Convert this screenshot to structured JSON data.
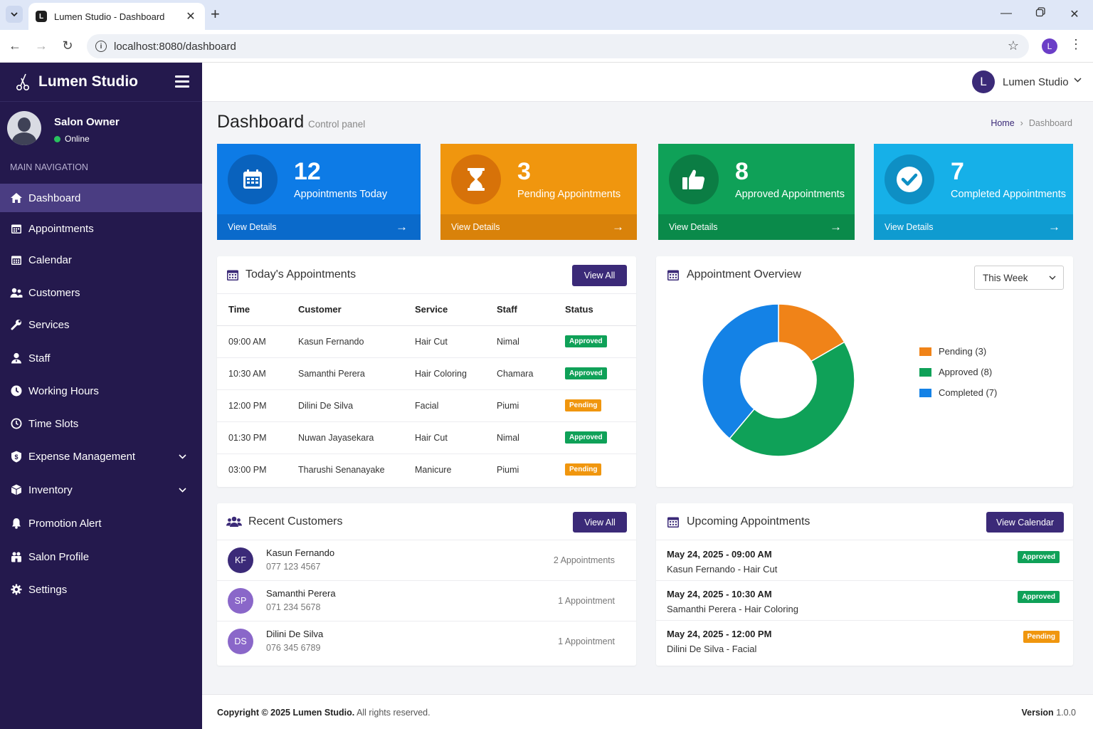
{
  "browser": {
    "tab_title": "Lumen Studio - Dashboard",
    "favicon_letter": "L",
    "url": "localhost:8080/dashboard",
    "profile_letter": "L"
  },
  "sidebar": {
    "brand": "Lumen Studio",
    "user_name": "Salon Owner",
    "user_status": "Online",
    "nav_header": "MAIN NAVIGATION",
    "items": [
      {
        "label": "Dashboard",
        "icon": "tachometer-icon"
      },
      {
        "label": "Appointments",
        "icon": "calendar-icon"
      },
      {
        "label": "Calendar",
        "icon": "calendar-grid-icon"
      },
      {
        "label": "Customers",
        "icon": "users-icon"
      },
      {
        "label": "Services",
        "icon": "wrench-icon"
      },
      {
        "label": "Staff",
        "icon": "user-tie-icon"
      },
      {
        "label": "Working Hours",
        "icon": "clock-icon"
      },
      {
        "label": "Time Slots",
        "icon": "clock-outline-icon"
      },
      {
        "label": "Expense Management",
        "icon": "money-icon"
      },
      {
        "label": "Inventory",
        "icon": "box-icon"
      },
      {
        "label": "Promotion Alert",
        "icon": "bell-icon"
      },
      {
        "label": "Salon Profile",
        "icon": "building-icon"
      },
      {
        "label": "Settings",
        "icon": "gear-icon"
      }
    ]
  },
  "topbar": {
    "avatar_letter": "L",
    "user": "Lumen Studio"
  },
  "page": {
    "title": "Dashboard",
    "subtitle": "Control panel",
    "breadcrumb_home": "Home",
    "breadcrumb_current": "Dashboard"
  },
  "stats": [
    {
      "value": "12",
      "label": "Appointments Today",
      "link": "View Details",
      "color": "#0d7be6",
      "foot": "#0a6acb",
      "circle": "#0962bd"
    },
    {
      "value": "3",
      "label": "Pending Appointments",
      "link": "View Details",
      "color": "#f0960e",
      "foot": "#d9820a",
      "circle": "#d77209"
    },
    {
      "value": "8",
      "label": "Approved Appointments",
      "link": "View Details",
      "color": "#0fa158",
      "foot": "#0a8a4a",
      "circle": "#0b7d44"
    },
    {
      "value": "7",
      "label": "Completed Appointments",
      "link": "View Details",
      "color": "#16b0e8",
      "foot": "#0f9bd0",
      "circle": "#0e8fc4"
    }
  ],
  "today": {
    "title": "Today's Appointments",
    "view_all": "View All",
    "columns": [
      "Time",
      "Customer",
      "Service",
      "Staff",
      "Status"
    ],
    "rows": [
      {
        "time": "09:00 AM",
        "customer": "Kasun Fernando",
        "service": "Hair Cut",
        "staff": "Nimal",
        "status": "Approved"
      },
      {
        "time": "10:30 AM",
        "customer": "Samanthi Perera",
        "service": "Hair Coloring",
        "staff": "Chamara",
        "status": "Approved"
      },
      {
        "time": "12:00 PM",
        "customer": "Dilini De Silva",
        "service": "Facial",
        "staff": "Piumi",
        "status": "Pending"
      },
      {
        "time": "01:30 PM",
        "customer": "Nuwan Jayasekara",
        "service": "Hair Cut",
        "staff": "Nimal",
        "status": "Approved"
      },
      {
        "time": "03:00 PM",
        "customer": "Tharushi Senanayake",
        "service": "Manicure",
        "staff": "Piumi",
        "status": "Pending"
      }
    ]
  },
  "overview": {
    "title": "Appointment Overview",
    "period": "This Week",
    "legend": [
      "Pending (3)",
      "Approved (8)",
      "Completed (7)"
    ]
  },
  "chart_data": {
    "type": "pie",
    "donut": true,
    "categories": [
      "Pending",
      "Approved",
      "Completed"
    ],
    "values": [
      3,
      8,
      7
    ],
    "colors": [
      "#f08318",
      "#0fa158",
      "#1482e6"
    ],
    "legend_position": "right"
  },
  "customers": {
    "title": "Recent Customers",
    "view_all": "View All",
    "rows": [
      {
        "initials": "KF",
        "name": "Kasun Fernando",
        "phone": "077 123 4567",
        "count": "2 Appointments",
        "color": "#3b2a78"
      },
      {
        "initials": "SP",
        "name": "Samanthi Perera",
        "phone": "071 234 5678",
        "count": "1 Appointment",
        "color": "#8a67c9"
      },
      {
        "initials": "DS",
        "name": "Dilini De Silva",
        "phone": "076 345 6789",
        "count": "1 Appointment",
        "color": "#8a67c9"
      }
    ]
  },
  "upcoming": {
    "title": "Upcoming Appointments",
    "view_calendar": "View Calendar",
    "rows": [
      {
        "date": "May 24, 2025 - 09:00 AM",
        "desc": "Kasun Fernando - Hair Cut",
        "status": "Approved"
      },
      {
        "date": "May 24, 2025 - 10:30 AM",
        "desc": "Samanthi Perera - Hair Coloring",
        "status": "Approved"
      },
      {
        "date": "May 24, 2025 - 12:00 PM",
        "desc": "Dilini De Silva - Facial",
        "status": "Pending"
      }
    ]
  },
  "status_colors": {
    "Approved": "#0fa158",
    "Pending": "#f0960e"
  },
  "footer": {
    "copyright": "Copyright © 2025 Lumen Studio.",
    "rights": "All rights reserved.",
    "version_label": "Version",
    "version": "1.0.0"
  }
}
